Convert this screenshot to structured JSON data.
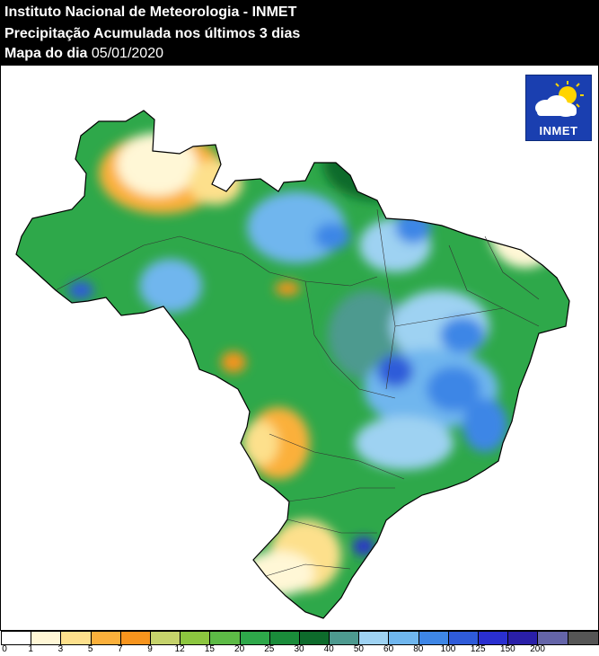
{
  "header": {
    "line1": "Instituto Nacional de Meteorologia - INMET",
    "line2": "Precipitação Acumulada nos últimos 3 dias",
    "line3_label": "Mapa do dia ",
    "line3_date": "05/01/2020"
  },
  "logo": {
    "text": "INMET",
    "icon": "sun-cloud-icon"
  },
  "legend": {
    "ticks": [
      "0",
      "1",
      "3",
      "5",
      "7",
      "9",
      "12",
      "15",
      "20",
      "25",
      "30",
      "40",
      "50",
      "60",
      "80",
      "100",
      "125",
      "150",
      "200"
    ],
    "colors": [
      "#ffffff",
      "#fff7d6",
      "#fde08c",
      "#fbb03b",
      "#f7941d",
      "#c5d26b",
      "#8cc63f",
      "#5dbb46",
      "#2ea84a",
      "#1a8c3a",
      "#0e6b2c",
      "#4d9a8f",
      "#9ed2f2",
      "#6fb6ee",
      "#3e86e6",
      "#2f5bd9",
      "#2a2fd0",
      "#2a1fa8",
      "#6464a8",
      "#555555"
    ]
  },
  "map": {
    "description_colors": {
      "border": "#000000"
    }
  }
}
